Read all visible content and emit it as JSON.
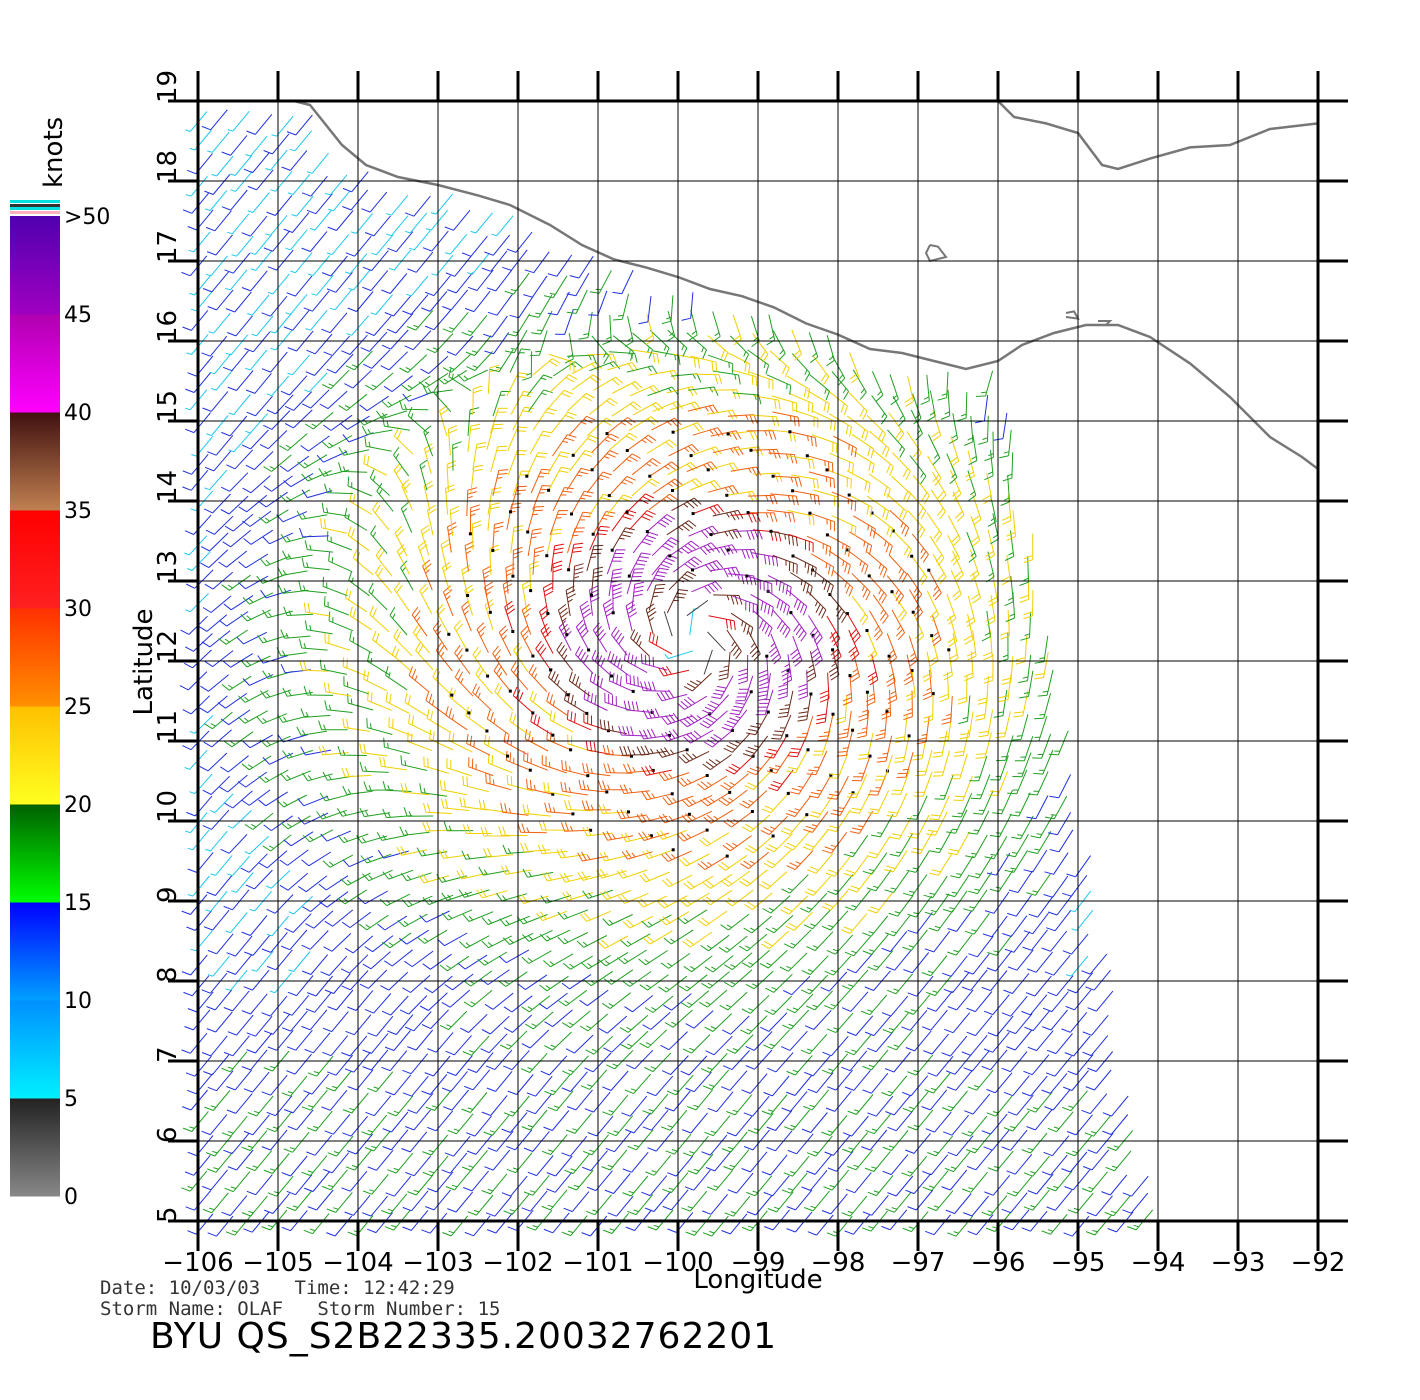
{
  "colorbar": {
    "unit": "knots",
    "labels": [
      ">50",
      "45",
      "40",
      "35",
      "30",
      "25",
      "20",
      "15",
      "10",
      "5",
      "0"
    ],
    "bands": [
      {
        "from": 0,
        "to": 5,
        "top": "#222222",
        "bottom": "#888888"
      },
      {
        "from": 5,
        "to": 10,
        "top": "#0090ff",
        "bottom": "#00f0ff"
      },
      {
        "from": 10,
        "to": 15,
        "top": "#0000ff",
        "bottom": "#00a0ff"
      },
      {
        "from": 15,
        "to": 20,
        "top": "#006000",
        "bottom": "#00ff00"
      },
      {
        "from": 20,
        "to": 25,
        "top": "#ffc000",
        "bottom": "#ffff20"
      },
      {
        "from": 25,
        "to": 30,
        "top": "#ff3000",
        "bottom": "#ff9000"
      },
      {
        "from": 30,
        "to": 35,
        "top": "#ff0000",
        "bottom": "#ff2020"
      },
      {
        "from": 35,
        "to": 40,
        "top": "#401010",
        "bottom": "#c08050"
      },
      {
        "from": 40,
        "to": 45,
        "top": "#b000b0",
        "bottom": "#ff00ff"
      },
      {
        "from": 45,
        "to": 50,
        "top": "#5000b0",
        "bottom": "#a000c0"
      }
    ]
  },
  "map": {
    "lon_range": [
      -106,
      -92
    ],
    "lat_range": [
      5,
      19
    ],
    "lon_ticks": [
      "-106",
      "-105",
      "-104",
      "-103",
      "-102",
      "-101",
      "-100",
      "-99",
      "-98",
      "-97",
      "-96",
      "-95",
      "-94",
      "-93",
      "-92"
    ],
    "lat_ticks": [
      "5",
      "6",
      "7",
      "8",
      "9",
      "10",
      "11",
      "12",
      "13",
      "14",
      "15",
      "16",
      "17",
      "18",
      "19"
    ],
    "xlabel": "Longitude",
    "ylabel": "Latitude",
    "coast_color": "#777777",
    "coastline": [
      [
        -104.8,
        19
      ],
      [
        -104.6,
        18.95
      ],
      [
        -104.4,
        18.7
      ],
      [
        -104.2,
        18.45
      ],
      [
        -103.9,
        18.2
      ],
      [
        -103.5,
        18.05
      ],
      [
        -103.0,
        17.95
      ],
      [
        -102.5,
        17.82
      ],
      [
        -102.1,
        17.7
      ],
      [
        -101.6,
        17.45
      ],
      [
        -101.2,
        17.2
      ],
      [
        -100.8,
        17.02
      ],
      [
        -100.4,
        16.92
      ],
      [
        -100.0,
        16.8
      ],
      [
        -99.6,
        16.65
      ],
      [
        -99.2,
        16.56
      ],
      [
        -98.8,
        16.42
      ],
      [
        -98.4,
        16.22
      ],
      [
        -98.0,
        16.08
      ],
      [
        -97.6,
        15.9
      ],
      [
        -97.2,
        15.85
      ],
      [
        -96.8,
        15.75
      ],
      [
        -96.4,
        15.65
      ],
      [
        -96.0,
        15.75
      ],
      [
        -95.7,
        15.95
      ],
      [
        -95.3,
        16.1
      ],
      [
        -94.9,
        16.2
      ],
      [
        -94.5,
        16.2
      ],
      [
        -94.1,
        16.05
      ],
      [
        -93.6,
        15.72
      ],
      [
        -93.1,
        15.3
      ],
      [
        -92.6,
        14.8
      ],
      [
        -92.2,
        14.55
      ],
      [
        -92.0,
        14.4
      ]
    ],
    "coastline_north": [
      [
        -96.0,
        19
      ],
      [
        -95.8,
        18.8
      ],
      [
        -95.4,
        18.72
      ],
      [
        -95.0,
        18.6
      ],
      [
        -94.7,
        18.2
      ],
      [
        -94.5,
        18.15
      ],
      [
        -94.1,
        18.28
      ],
      [
        -93.6,
        18.42
      ],
      [
        -93.1,
        18.45
      ],
      [
        -92.6,
        18.65
      ],
      [
        -92.0,
        18.72
      ]
    ],
    "islands": [
      [
        [
          -96.85,
          17.2
        ],
        [
          -96.75,
          17.18
        ],
        [
          -96.65,
          17.05
        ],
        [
          -96.85,
          17.0
        ],
        [
          -96.9,
          17.1
        ],
        [
          -96.85,
          17.2
        ]
      ],
      [
        [
          -95.15,
          16.35
        ],
        [
          -95.05,
          16.37
        ],
        [
          -95.0,
          16.28
        ],
        [
          -95.15,
          16.3
        ]
      ],
      [
        [
          -94.75,
          16.25
        ],
        [
          -94.6,
          16.25
        ],
        [
          -94.65,
          16.2
        ]
      ]
    ]
  },
  "wind_field": {
    "center": [
      -99.8,
      12.3
    ],
    "grid_step": 0.25,
    "swath": {
      "lon_north": -95.9,
      "lon_south": -94.0,
      "lat_swath_top": 15.3
    }
  },
  "footer": {
    "date_label": "Date:",
    "date_value": "10/03/03",
    "time_label": "Time:",
    "time_value": "12:42:29",
    "storm_name_label": "Storm Name:",
    "storm_name_value": "OLAF",
    "storm_number_label": "Storm Number:",
    "storm_number_value": "15",
    "product_id": "BYU  QS_S2B22335.20032762201"
  }
}
